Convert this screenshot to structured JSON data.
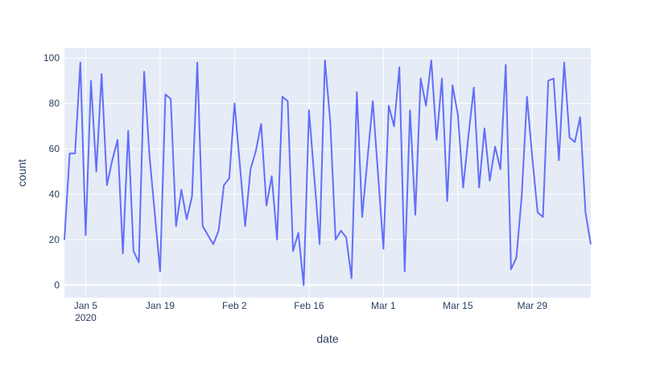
{
  "chart_data": {
    "type": "line",
    "x_title": "date",
    "y_title": "count",
    "x": [
      "2020-01-01",
      "2020-01-02",
      "2020-01-03",
      "2020-01-04",
      "2020-01-05",
      "2020-01-06",
      "2020-01-07",
      "2020-01-08",
      "2020-01-09",
      "2020-01-10",
      "2020-01-11",
      "2020-01-12",
      "2020-01-13",
      "2020-01-14",
      "2020-01-15",
      "2020-01-16",
      "2020-01-17",
      "2020-01-19",
      "2020-01-20",
      "2020-01-21",
      "2020-01-22",
      "2020-01-23",
      "2020-01-24",
      "2020-01-25",
      "2020-01-26",
      "2020-01-27",
      "2020-01-29",
      "2020-01-30",
      "2020-01-31",
      "2020-02-01",
      "2020-02-02",
      "2020-02-04",
      "2020-02-05",
      "2020-02-06",
      "2020-02-07",
      "2020-02-08",
      "2020-02-09",
      "2020-02-10",
      "2020-02-11",
      "2020-02-12",
      "2020-02-13",
      "2020-02-14",
      "2020-02-15",
      "2020-02-16",
      "2020-02-18",
      "2020-02-19",
      "2020-02-20",
      "2020-02-21",
      "2020-02-22",
      "2020-02-23",
      "2020-02-24",
      "2020-02-25",
      "2020-02-26",
      "2020-02-28",
      "2020-03-01",
      "2020-03-02",
      "2020-03-03",
      "2020-03-04",
      "2020-03-05",
      "2020-03-06",
      "2020-03-07",
      "2020-03-08",
      "2020-03-09",
      "2020-03-10",
      "2020-03-11",
      "2020-03-12",
      "2020-03-13",
      "2020-03-14",
      "2020-03-15",
      "2020-03-16",
      "2020-03-17",
      "2020-03-18",
      "2020-03-19",
      "2020-03-20",
      "2020-03-21",
      "2020-03-22",
      "2020-03-23",
      "2020-03-24",
      "2020-03-25",
      "2020-03-26",
      "2020-03-27",
      "2020-03-28",
      "2020-03-29",
      "2020-03-30",
      "2020-03-31",
      "2020-04-01",
      "2020-04-02",
      "2020-04-03",
      "2020-04-04",
      "2020-04-05",
      "2020-04-06",
      "2020-04-07",
      "2020-04-08",
      "2020-04-09"
    ],
    "series": [
      {
        "name": "count",
        "color": "#636efa",
        "values": [
          20,
          58,
          58,
          98,
          22,
          90,
          50,
          93,
          44,
          55,
          64,
          14,
          68,
          15,
          10,
          94,
          57,
          6,
          84,
          82,
          26,
          42,
          29,
          39,
          98,
          26,
          18,
          24,
          44,
          47,
          80,
          26,
          51,
          59,
          71,
          35,
          48,
          20,
          83,
          81,
          15,
          23,
          0,
          77,
          18,
          99,
          72,
          20,
          24,
          21,
          3,
          85,
          30,
          81,
          16,
          79,
          70,
          96,
          6,
          77,
          31,
          91,
          79,
          99,
          64,
          91,
          37,
          88,
          75,
          43,
          66,
          87,
          43,
          69,
          46,
          61,
          51,
          97,
          7,
          12,
          39,
          83,
          56,
          32,
          30,
          90,
          91,
          55,
          98,
          65,
          63,
          74,
          32,
          18
        ]
      }
    ],
    "xlim": [
      "2020-01-01",
      "2020-04-09"
    ],
    "xticks": [
      {
        "value": "2020-01-05",
        "label": "Jan 5"
      },
      {
        "value": "2020-01-19",
        "label": "Jan 19"
      },
      {
        "value": "2020-02-02",
        "label": "Feb 2"
      },
      {
        "value": "2020-02-16",
        "label": "Feb 16"
      },
      {
        "value": "2020-03-01",
        "label": "Mar 1"
      },
      {
        "value": "2020-03-15",
        "label": "Mar 15"
      },
      {
        "value": "2020-03-29",
        "label": "Mar 29"
      }
    ],
    "x_year_label": "2020",
    "ylim": [
      -5.5,
      104.3
    ],
    "yticks": [
      0,
      20,
      40,
      60,
      80,
      100
    ],
    "grid": true
  }
}
